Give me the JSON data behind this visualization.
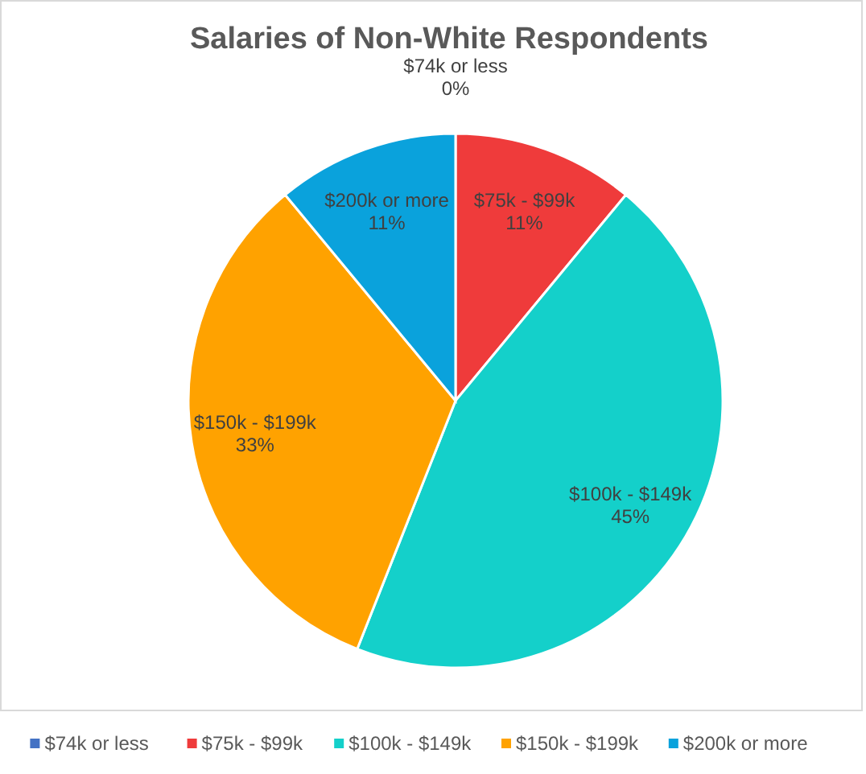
{
  "chart_data": {
    "type": "pie",
    "title": "Salaries of Non-White Respondents",
    "categories": [
      "$74k or less",
      "$75k - $99k",
      "$100k - $149k",
      "$150k - $199k",
      "$200k or more"
    ],
    "values": [
      0,
      11,
      45,
      33,
      11
    ],
    "colors": [
      "#4472c4",
      "#ef3b3b",
      "#14d0ca",
      "#ffa200",
      "#0aa2dc"
    ],
    "value_labels": [
      "0%",
      "11%",
      "45%",
      "33%",
      "11%"
    ],
    "legend": "bottom"
  }
}
